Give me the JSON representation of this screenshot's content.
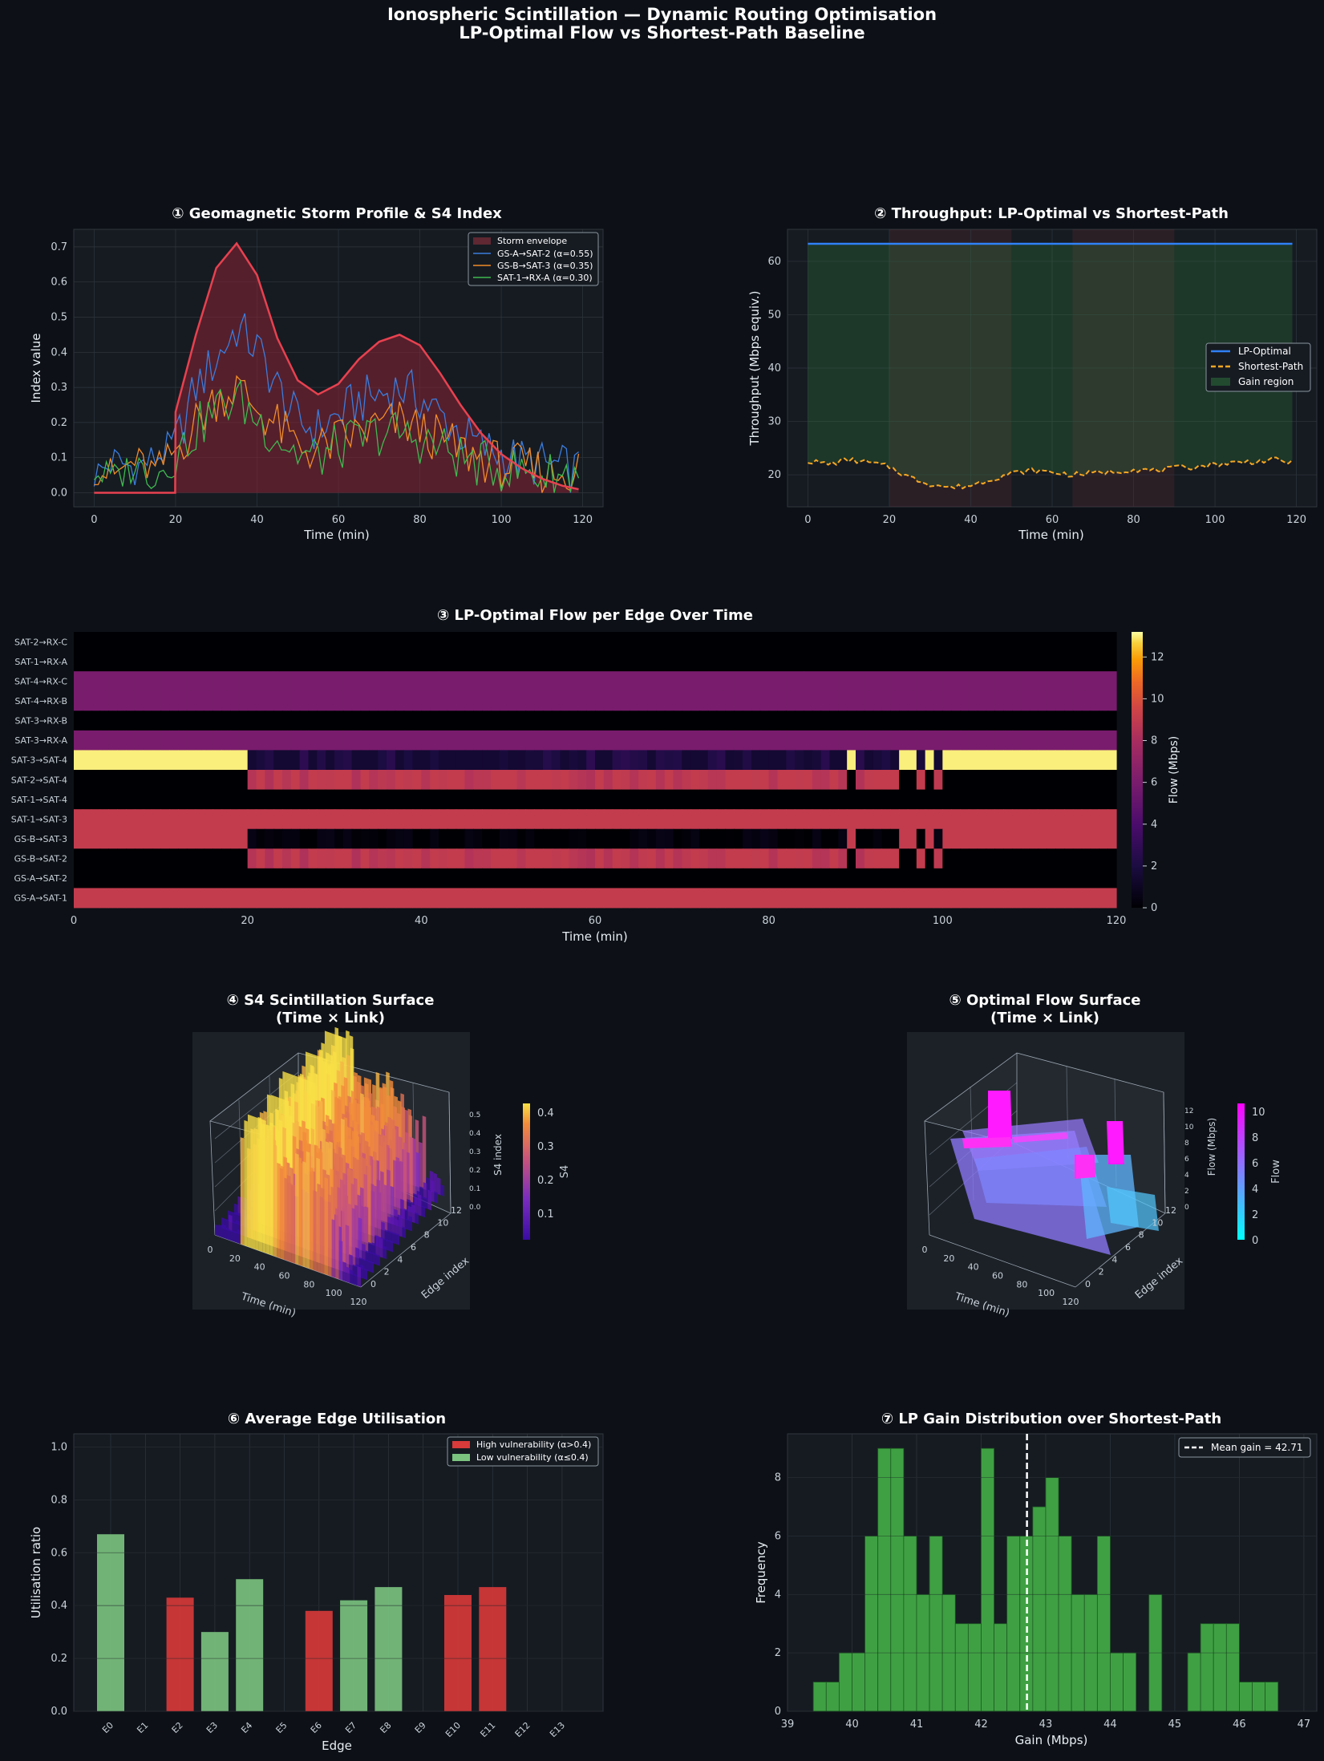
{
  "figure": {
    "title_line1": "Ionospheric Scintillation — Dynamic Routing Optimisation",
    "title_line2": "LP-Optimal Flow vs Shortest-Path Baseline",
    "colors": {
      "background": "#0d1117",
      "axes": "#161b22",
      "red": "#e8414f",
      "blue": "#2f81f7",
      "orange": "#f5a623",
      "green": "#3fb950"
    }
  },
  "chart_data": [
    {
      "id": "p1",
      "type": "line",
      "title": "① Geomagnetic Storm Profile & S4 Index",
      "xlabel": "Time (min)",
      "ylabel": "Index value",
      "xlim": [
        -5,
        125
      ],
      "ylim": [
        -0.04,
        0.75
      ],
      "xticks": [
        0,
        20,
        40,
        60,
        80,
        100,
        120
      ],
      "yticks": [
        0.0,
        0.1,
        0.2,
        0.3,
        0.4,
        0.5,
        0.6,
        0.7
      ],
      "legend_position": "top-right",
      "grid": true,
      "series": [
        {
          "name": "Storm envelope",
          "style": "filled",
          "color": "#e8414f",
          "x": [
            0,
            19.9,
            20,
            25,
            30,
            35,
            40,
            45,
            50,
            55,
            60,
            65,
            70,
            75,
            80,
            85,
            90,
            95,
            100,
            105,
            110,
            115,
            119
          ],
          "values": [
            0,
            0,
            0.23,
            0.45,
            0.64,
            0.71,
            0.62,
            0.44,
            0.32,
            0.28,
            0.31,
            0.38,
            0.43,
            0.45,
            0.42,
            0.34,
            0.25,
            0.17,
            0.11,
            0.07,
            0.04,
            0.02,
            0.01
          ]
        },
        {
          "name": "GS-A→SAT-2 (α=0.55)",
          "color": "#3b7ddd",
          "x": [
            0,
            5,
            10,
            15,
            20,
            25,
            30,
            35,
            40,
            45,
            50,
            55,
            60,
            65,
            70,
            75,
            80,
            85,
            90,
            95,
            100,
            105,
            110,
            115,
            119
          ],
          "values": [
            0.05,
            0.09,
            0.07,
            0.1,
            0.14,
            0.3,
            0.38,
            0.47,
            0.41,
            0.3,
            0.2,
            0.18,
            0.22,
            0.26,
            0.28,
            0.3,
            0.27,
            0.22,
            0.17,
            0.13,
            0.11,
            0.09,
            0.08,
            0.07,
            0.06
          ]
        },
        {
          "name": "GS-B→SAT-3 (α=0.35)",
          "color": "#f28c28",
          "x": [
            0,
            5,
            10,
            15,
            20,
            25,
            30,
            35,
            40,
            45,
            50,
            55,
            60,
            65,
            70,
            75,
            80,
            85,
            90,
            95,
            100,
            105,
            110,
            115,
            119
          ],
          "values": [
            0.07,
            0.05,
            0.09,
            0.06,
            0.12,
            0.2,
            0.27,
            0.3,
            0.24,
            0.19,
            0.13,
            0.12,
            0.15,
            0.17,
            0.19,
            0.2,
            0.18,
            0.15,
            0.12,
            0.1,
            0.08,
            0.07,
            0.06,
            0.06,
            0.07
          ]
        },
        {
          "name": "SAT-1→RX-A (α=0.30)",
          "color": "#3fb950",
          "x": [
            0,
            5,
            10,
            15,
            20,
            25,
            30,
            35,
            40,
            45,
            50,
            55,
            60,
            65,
            70,
            75,
            80,
            85,
            90,
            95,
            100,
            105,
            110,
            115,
            119
          ],
          "values": [
            0.06,
            0.04,
            0.08,
            0.05,
            0.1,
            0.18,
            0.24,
            0.27,
            0.21,
            0.16,
            0.11,
            0.1,
            0.13,
            0.15,
            0.17,
            0.17,
            0.15,
            0.13,
            0.1,
            0.08,
            0.07,
            0.06,
            0.05,
            0.05,
            0.06
          ]
        }
      ]
    },
    {
      "id": "p2",
      "type": "line",
      "title": "② Throughput: LP-Optimal vs Shortest-Path",
      "xlabel": "Time (min)",
      "ylabel": "Throughput (Mbps equiv.)",
      "xlim": [
        -5,
        125
      ],
      "ylim": [
        14,
        66
      ],
      "xticks": [
        0,
        20,
        40,
        60,
        80,
        100,
        120
      ],
      "yticks": [
        20,
        30,
        40,
        50,
        60
      ],
      "legend_position": "center-right",
      "grid": true,
      "storm_bands": [
        [
          20,
          50
        ],
        [
          65,
          90
        ]
      ],
      "series": [
        {
          "name": "LP-Optimal",
          "color": "#2f81f7",
          "x": [
            0,
            119
          ],
          "values": [
            63.3,
            63.3
          ]
        },
        {
          "name": "Shortest-Path",
          "style": "dashed",
          "color": "#f5a623",
          "x": [
            0,
            5,
            10,
            15,
            20,
            25,
            30,
            35,
            40,
            45,
            50,
            55,
            60,
            65,
            70,
            75,
            80,
            85,
            90,
            95,
            100,
            105,
            110,
            115,
            119
          ],
          "values": [
            22.6,
            22.0,
            22.8,
            22.3,
            21.5,
            19.5,
            18.3,
            17.6,
            18.0,
            19.2,
            20.3,
            20.8,
            20.5,
            20.0,
            20.3,
            20.6,
            21.0,
            20.8,
            21.2,
            21.5,
            22.0,
            22.3,
            22.5,
            22.8,
            22.3
          ]
        },
        {
          "name": "Gain region",
          "style": "fill-between",
          "color": "#3fb950"
        }
      ]
    },
    {
      "id": "p3",
      "type": "heatmap",
      "title": "③ LP-Optimal Flow per Edge Over Time",
      "xlabel": "Time (min)",
      "colorbar_label": "Flow (Mbps)",
      "xticks": [
        0,
        20,
        40,
        60,
        80,
        100,
        120
      ],
      "colorbar_ticks": [
        0,
        2,
        4,
        6,
        8,
        10,
        12
      ],
      "zlim": [
        0,
        13.2
      ],
      "rows": [
        "SAT-2→RX-C",
        "SAT-1→RX-A",
        "SAT-4→RX-C",
        "SAT-4→RX-B",
        "SAT-3→RX-B",
        "SAT-3→RX-A",
        "SAT-3→SAT-4",
        "SAT-2→SAT-4",
        "SAT-1→SAT-4",
        "SAT-1→SAT-3",
        "GS-B→SAT-3",
        "GS-B→SAT-2",
        "GS-A→SAT-2",
        "GS-A→SAT-1"
      ],
      "row_values_summary": {
        "SAT-2→RX-C": 0,
        "SAT-1→RX-A": 0,
        "SAT-4→RX-C": 6.0,
        "SAT-4→RX-B": 6.0,
        "SAT-3→RX-B": 0,
        "SAT-3→RX-A": 6.0,
        "SAT-3→SAT-4": "13 outside storm, ~1.5 during 20–100",
        "SAT-2→SAT-4": "0 outside storm, ~9 during 20–100",
        "SAT-1→SAT-4": 0,
        "SAT-1→SAT-3": 9.0,
        "GS-B→SAT-3": "9 outside storm, ~0.5 during 20–100",
        "GS-B→SAT-2": "0 outside storm, ~9 during 20–100",
        "GS-A→SAT-2": 0,
        "GS-A→SAT-1": 9.0
      }
    },
    {
      "id": "p4",
      "type": "surface3d",
      "title_line1": "④ S4 Scintillation Surface",
      "title_line2": "(Time × Link)",
      "xlabel": "Time (min)",
      "ylabel": "Edge index",
      "zlabel": "S4 index",
      "colorbar_label": "S4",
      "xticks": [
        0,
        20,
        40,
        60,
        80,
        100,
        120
      ],
      "yticks": [
        0,
        2,
        4,
        6,
        8,
        10,
        12
      ],
      "zticks": [
        "0.0",
        "0.1",
        "0.2",
        "0.3",
        "0.4",
        "0.5"
      ],
      "colorbar_ticks": [
        "0.1",
        "0.2",
        "0.3",
        "0.4"
      ]
    },
    {
      "id": "p5",
      "type": "surface3d",
      "title_line1": "⑤ Optimal Flow Surface",
      "title_line2": "(Time × Link)",
      "xlabel": "Time (min)",
      "ylabel": "Edge index",
      "zlabel": "Flow (Mbps)",
      "colorbar_label": "Flow",
      "xticks": [
        0,
        20,
        40,
        60,
        80,
        100,
        120
      ],
      "yticks": [
        0,
        2,
        4,
        6,
        8,
        10,
        12
      ],
      "zticks": [
        "0",
        "2",
        "4",
        "6",
        "8",
        "10",
        "12"
      ],
      "colorbar_ticks": [
        "0",
        "2",
        "4",
        "6",
        "8",
        "10"
      ]
    },
    {
      "id": "p6",
      "type": "bar",
      "title": "⑥ Average Edge Utilisation",
      "xlabel": "Edge",
      "ylabel": "Utilisation ratio",
      "ylim": [
        0,
        1.05
      ],
      "yticks": [
        "0.0",
        "0.2",
        "0.4",
        "0.6",
        "0.8",
        "1.0"
      ],
      "categories": [
        "E0",
        "E1",
        "E2",
        "E3",
        "E4",
        "E5",
        "E6",
        "E7",
        "E8",
        "E9",
        "E10",
        "E11",
        "E12",
        "E13"
      ],
      "values": [
        0.67,
        0,
        0.43,
        0.3,
        0.5,
        0,
        0.38,
        0.42,
        0.47,
        0,
        0.44,
        0.47,
        0,
        0
      ],
      "high_vulnerability": [
        false,
        false,
        true,
        false,
        false,
        false,
        true,
        false,
        false,
        false,
        true,
        true,
        false,
        false
      ],
      "legend_position": "top-right",
      "legend": [
        {
          "name": "High vulnerability (α>0.4)",
          "color": "#d93a3a"
        },
        {
          "name": "Low vulnerability  (α≤0.4)",
          "color": "#7bc47f"
        }
      ]
    },
    {
      "id": "p7",
      "type": "bar",
      "title": "⑦ LP Gain Distribution over Shortest-Path",
      "xlabel": "Gain (Mbps)",
      "ylabel": "Frequency",
      "xlim": [
        39,
        47.2
      ],
      "ylim": [
        0,
        9.5
      ],
      "xticks": [
        39,
        40,
        41,
        42,
        43,
        44,
        45,
        46,
        47
      ],
      "yticks": [
        0,
        2,
        4,
        6,
        8
      ],
      "bin_width": 0.2,
      "bin_starts": [
        39.4,
        39.6,
        39.8,
        40.0,
        40.2,
        40.4,
        40.6,
        40.8,
        41.0,
        41.2,
        41.4,
        41.6,
        41.8,
        42.0,
        42.2,
        42.4,
        42.6,
        42.8,
        43.0,
        43.2,
        43.4,
        43.6,
        43.8,
        44.0,
        44.2,
        44.4,
        44.6,
        44.8,
        45.0,
        45.2,
        45.4,
        45.6,
        45.8,
        46.0,
        46.2,
        46.4,
        46.6
      ],
      "values": [
        1,
        1,
        2,
        2,
        6,
        9,
        9,
        6,
        4,
        6,
        4,
        3,
        3,
        9,
        3,
        6,
        6,
        7,
        8,
        6,
        4,
        4,
        6,
        2,
        2,
        0,
        4,
        0,
        0,
        2,
        3,
        3,
        3,
        1,
        1,
        1,
        0
      ],
      "mean_gain": 42.71,
      "legend": "Mean gain = 42.71",
      "legend_position": "top-right"
    }
  ]
}
